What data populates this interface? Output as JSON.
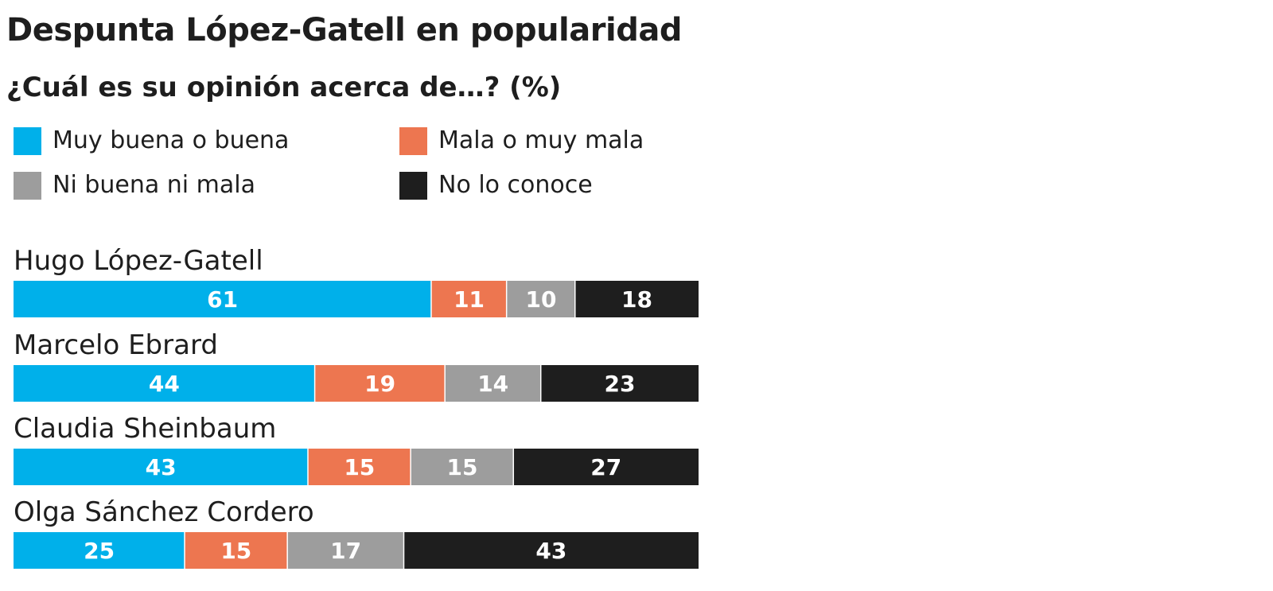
{
  "chart_data": {
    "type": "bar",
    "orientation": "horizontal",
    "stacked": true,
    "title": "Despunta López-Gatell en popularidad",
    "subtitle": "¿Cuál es su opinión acerca de…?  (%)",
    "categories": [
      "Hugo López-Gatell",
      "Marcelo Ebrard",
      "Claudia Sheinbaum",
      "Olga Sánchez Cordero"
    ],
    "series": [
      {
        "name": "Muy buena o buena",
        "color": "#00b0ea",
        "values": [
          61,
          44,
          43,
          25
        ]
      },
      {
        "name": "Mala o muy mala",
        "color": "#ed7650",
        "values": [
          11,
          19,
          15,
          15
        ]
      },
      {
        "name": "Ni buena ni mala",
        "color": "#9d9d9d",
        "values": [
          10,
          14,
          15,
          17
        ]
      },
      {
        "name": "No lo conoce",
        "color": "#1e1e1e",
        "values": [
          18,
          23,
          27,
          43
        ]
      }
    ],
    "xlim": [
      0,
      100
    ],
    "grid": false,
    "legend": "top"
  }
}
